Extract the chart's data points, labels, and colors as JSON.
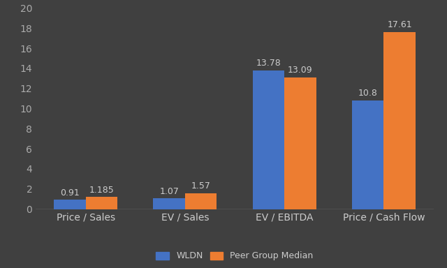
{
  "categories": [
    "Price / Sales",
    "EV / Sales",
    "EV / EBITDA",
    "Price / Cash Flow"
  ],
  "wldn_values": [
    0.91,
    1.07,
    13.78,
    10.8
  ],
  "peer_values": [
    1.185,
    1.57,
    13.09,
    17.61
  ],
  "wldn_label": "WLDN",
  "peer_label": "Peer Group Median",
  "wldn_color": "#4472C4",
  "peer_color": "#ED7D31",
  "background_color": "#404040",
  "axes_color": "#404040",
  "text_color": "#CCCCCC",
  "tick_color": "#AAAAAA",
  "ylim": [
    0,
    20
  ],
  "yticks": [
    0,
    2,
    4,
    6,
    8,
    10,
    12,
    14,
    16,
    18,
    20
  ],
  "bar_width": 0.32,
  "label_fontsize": 9,
  "tick_fontsize": 10,
  "legend_fontsize": 9,
  "value_labels": {
    "wldn": [
      "0.91",
      "1.07",
      "13.78",
      "10.8"
    ],
    "peer": [
      "1.185",
      "1.57",
      "13.09",
      "17.61"
    ]
  }
}
